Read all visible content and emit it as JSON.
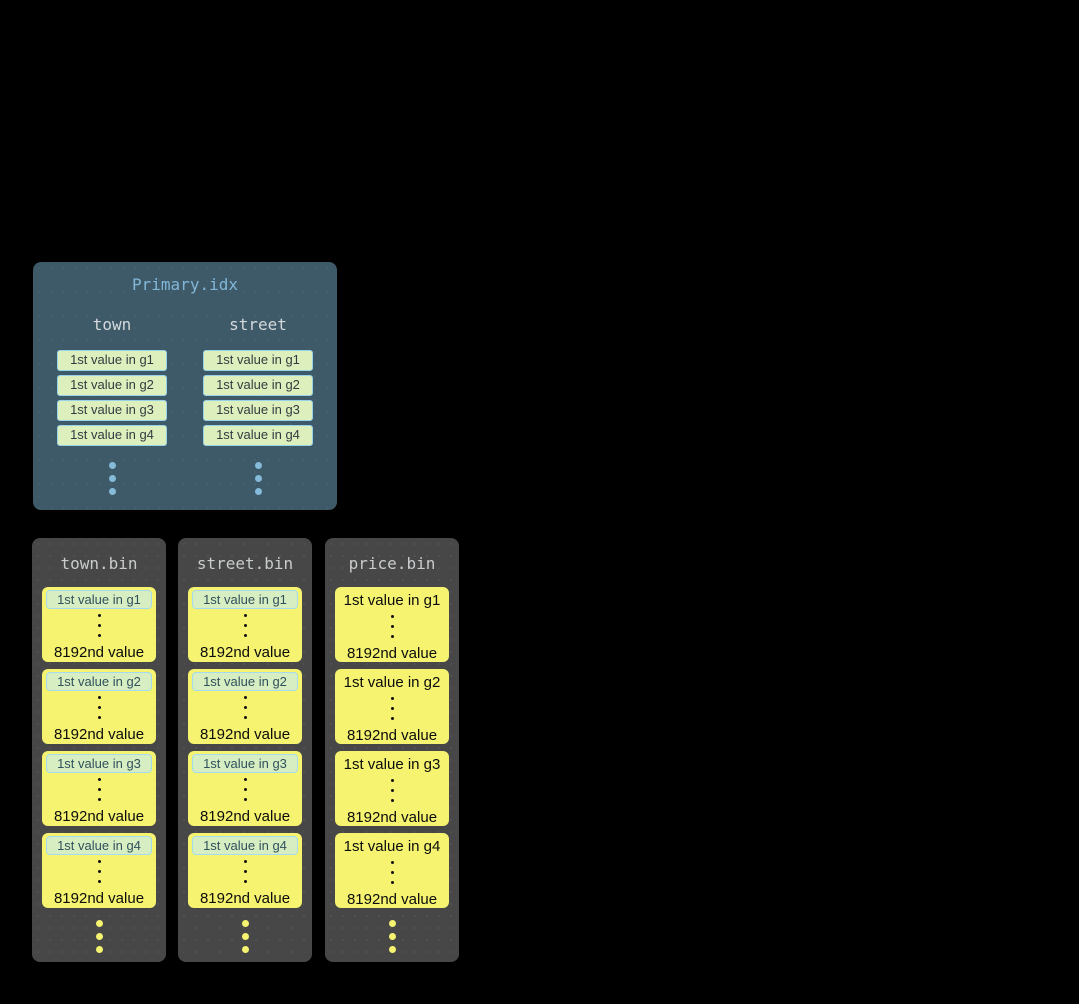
{
  "primary_index": {
    "title": "Primary.idx",
    "columns": [
      {
        "name": "town",
        "entries": [
          "1st value in g1",
          "1st value in g2",
          "1st value in g3",
          "1st value in g4"
        ]
      },
      {
        "name": "street",
        "entries": [
          "1st value in g1",
          "1st value in g2",
          "1st value in g3",
          "1st value in g4"
        ]
      }
    ]
  },
  "bin_files": [
    {
      "title": "town.bin",
      "first_value_highlighted": true,
      "granules": [
        {
          "first": "1st value in g1",
          "last": "8192nd value"
        },
        {
          "first": "1st value in g2",
          "last": "8192nd value"
        },
        {
          "first": "1st value in g3",
          "last": "8192nd value"
        },
        {
          "first": "1st value in g4",
          "last": "8192nd value"
        }
      ]
    },
    {
      "title": "street.bin",
      "first_value_highlighted": true,
      "granules": [
        {
          "first": "1st value in g1",
          "last": "8192nd value"
        },
        {
          "first": "1st value in g2",
          "last": "8192nd value"
        },
        {
          "first": "1st value in g3",
          "last": "8192nd value"
        },
        {
          "first": "1st value in g4",
          "last": "8192nd value"
        }
      ]
    },
    {
      "title": "price.bin",
      "first_value_highlighted": false,
      "granules": [
        {
          "first": "1st value in g1",
          "last": "8192nd value"
        },
        {
          "first": "1st value in g2",
          "last": "8192nd value"
        },
        {
          "first": "1st value in g3",
          "last": "8192nd value"
        },
        {
          "first": "1st value in g4",
          "last": "8192nd value"
        }
      ]
    }
  ],
  "colors": {
    "background": "#000000",
    "primary_box_bg": "#3e5a68",
    "primary_title_text": "#82b7d8",
    "column_header_text": "#d4d9dc",
    "index_cell_bg": "#ddefbc",
    "index_cell_border": "#97d2e8",
    "index_cell_text": "#333b41",
    "blue_dot": "#85bad8",
    "bin_box_bg": "#474747",
    "bin_title_text": "#c9cccd",
    "granule_bg": "#f5f370",
    "granule_text": "#0c0c0c",
    "granule_mark_bg": "#d6eec1",
    "granule_mark_border": "#a4dbee",
    "granule_mark_text": "#31505e",
    "yellow_dot": "#f5f370"
  }
}
